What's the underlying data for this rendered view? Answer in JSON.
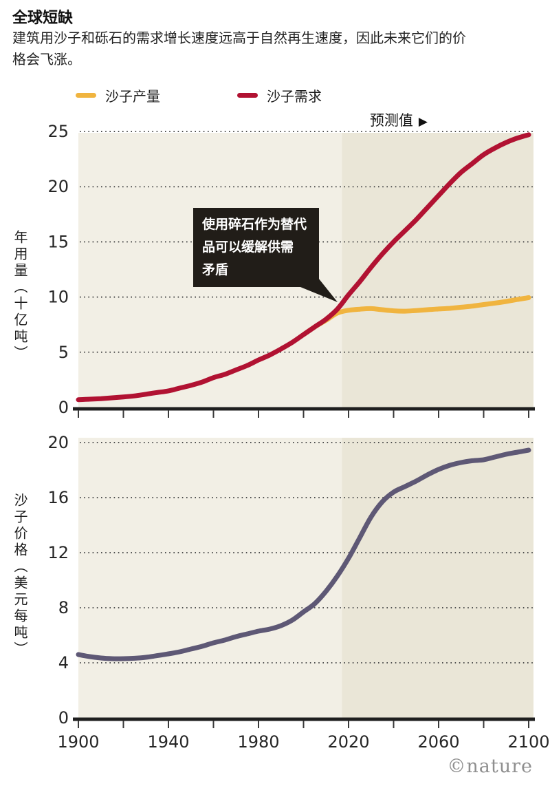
{
  "header": {
    "title": "全球短缺",
    "subtitle": "建筑用沙子和砾石的需求增长速度远高于自然再生速度，因此未来它们的价格会飞涨。"
  },
  "legend": {
    "items": [
      {
        "label": "沙子产量",
        "color": "#f0b43f"
      },
      {
        "label": "沙子需求",
        "color": "#b11232"
      }
    ]
  },
  "forecast": {
    "label": "预测值",
    "arrow": "▶"
  },
  "annotation": {
    "lines": [
      "使用碎石作为替代",
      "品可以缓解供需",
      "矛盾"
    ]
  },
  "watermark": "©nature",
  "colors": {
    "bg_hist": "#f2efe5",
    "bg_forecast": "#eae6d7",
    "grid": "#4d4d4d",
    "axis": "#1f1f1f",
    "tick_label": "#262626",
    "annotation_bg": "#211d18"
  },
  "chart_data": [
    {
      "type": "line",
      "name": "annual-usage",
      "ylabel": "年用量（十亿吨）",
      "ylim": [
        0,
        25
      ],
      "yticks": [
        0,
        5,
        10,
        15,
        20,
        25
      ],
      "xlim": [
        1900,
        2100
      ],
      "xticks": [
        1900,
        1920,
        1940,
        1960,
        1980,
        2000,
        2020,
        2040,
        2060,
        2080,
        2100
      ],
      "xtick_labels": [],
      "forecast_start": 2017,
      "grid": "dotted-horizontal",
      "legend_position": "top",
      "series": [
        {
          "name": "沙子产量",
          "color": "#f0b43f",
          "x": [
            2000,
            2005,
            2010,
            2015,
            2020,
            2025,
            2030,
            2035,
            2040,
            2045,
            2050,
            2055,
            2060,
            2065,
            2070,
            2075,
            2080,
            2085,
            2090,
            2095,
            2100
          ],
          "y": [
            6.6,
            7.3,
            7.9,
            8.55,
            8.8,
            8.9,
            8.95,
            8.85,
            8.75,
            8.72,
            8.78,
            8.85,
            8.92,
            8.98,
            9.08,
            9.18,
            9.32,
            9.45,
            9.6,
            9.78,
            9.95
          ]
        },
        {
          "name": "沙子需求",
          "color": "#b11232",
          "x": [
            1900,
            1905,
            1910,
            1915,
            1920,
            1925,
            1930,
            1935,
            1940,
            1945,
            1950,
            1955,
            1960,
            1965,
            1970,
            1975,
            1980,
            1985,
            1990,
            1995,
            2000,
            2005,
            2010,
            2015,
            2020,
            2025,
            2030,
            2035,
            2040,
            2045,
            2050,
            2055,
            2060,
            2065,
            2070,
            2075,
            2080,
            2085,
            2090,
            2095,
            2100
          ],
          "y": [
            0.7,
            0.75,
            0.8,
            0.87,
            0.95,
            1.05,
            1.2,
            1.35,
            1.5,
            1.75,
            2.0,
            2.3,
            2.7,
            3.0,
            3.4,
            3.8,
            4.3,
            4.75,
            5.3,
            5.9,
            6.6,
            7.3,
            8.0,
            8.9,
            10.2,
            11.4,
            12.7,
            13.9,
            15.0,
            16.0,
            17.0,
            18.1,
            19.2,
            20.3,
            21.3,
            22.1,
            22.9,
            23.5,
            24.0,
            24.4,
            24.7
          ]
        }
      ]
    },
    {
      "type": "line",
      "name": "sand-price",
      "ylabel": "沙子价格（美元每吨）",
      "ylim": [
        0,
        20
      ],
      "yticks": [
        0,
        4,
        8,
        12,
        16,
        20
      ],
      "xlim": [
        1900,
        2100
      ],
      "xticks": [
        1900,
        1920,
        1940,
        1960,
        1980,
        2000,
        2020,
        2040,
        2060,
        2080,
        2100
      ],
      "xtick_labels": [
        1900,
        1940,
        1980,
        2020,
        2060,
        2100
      ],
      "forecast_start": 2017,
      "grid": "dotted-horizontal",
      "series": [
        {
          "name": "沙子价格",
          "color": "#5e5875",
          "x": [
            1900,
            1905,
            1910,
            1915,
            1920,
            1925,
            1930,
            1935,
            1940,
            1945,
            1950,
            1955,
            1960,
            1965,
            1970,
            1975,
            1980,
            1985,
            1990,
            1995,
            2000,
            2005,
            2010,
            2015,
            2020,
            2025,
            2030,
            2035,
            2040,
            2045,
            2050,
            2055,
            2060,
            2065,
            2070,
            2075,
            2080,
            2085,
            2090,
            2095,
            2100
          ],
          "y": [
            4.6,
            4.45,
            4.35,
            4.3,
            4.3,
            4.33,
            4.4,
            4.52,
            4.65,
            4.8,
            5.0,
            5.2,
            5.45,
            5.65,
            5.9,
            6.1,
            6.3,
            6.45,
            6.7,
            7.1,
            7.7,
            8.3,
            9.2,
            10.3,
            11.6,
            13.1,
            14.6,
            15.7,
            16.4,
            16.8,
            17.2,
            17.65,
            18.05,
            18.35,
            18.55,
            18.68,
            18.75,
            18.95,
            19.15,
            19.3,
            19.45
          ]
        }
      ]
    }
  ]
}
